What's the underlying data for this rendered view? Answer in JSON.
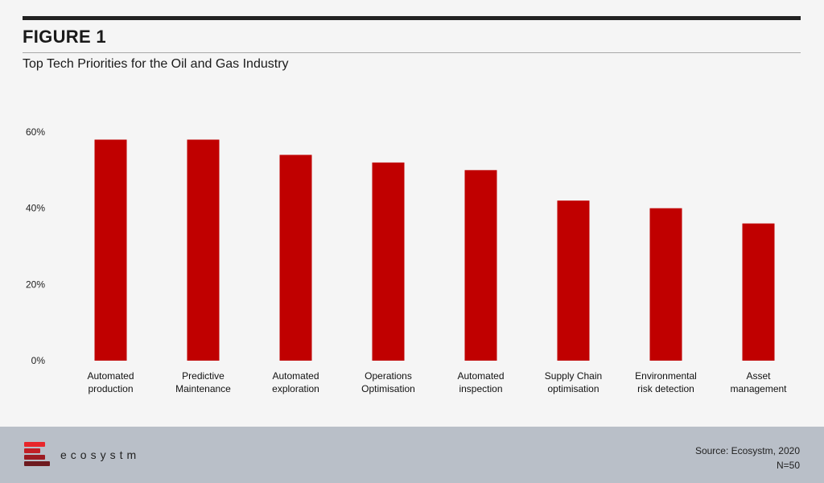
{
  "header": {
    "figure_label": "FIGURE 1",
    "subtitle": "Top Tech Priorities for the Oil and Gas Industry"
  },
  "colors": {
    "bar": "#c00000",
    "background": "#f5f5f5",
    "footer": "#b9bfc8",
    "logo_stripes": [
      "#e8262b",
      "#c21f26",
      "#9c1b22",
      "#6e1a1f"
    ]
  },
  "chart_data": {
    "type": "bar",
    "title": "Top Tech Priorities for the Oil and Gas Industry",
    "categories": [
      [
        "Automated",
        "production"
      ],
      [
        "Predictive",
        "Maintenance"
      ],
      [
        "Automated",
        "exploration"
      ],
      [
        "Operations",
        "Optimisation"
      ],
      [
        "Automated",
        "inspection"
      ],
      [
        "Supply Chain",
        "optimisation"
      ],
      [
        "Environmental",
        "risk detection"
      ],
      [
        "Asset",
        "management"
      ]
    ],
    "values": [
      58,
      58,
      54,
      52,
      50,
      42,
      40,
      36
    ],
    "ylim": [
      0,
      60
    ],
    "yticks": [
      0,
      20,
      40,
      60
    ],
    "ytick_labels": [
      "0%",
      "20%",
      "40%",
      "60%"
    ],
    "grid": false,
    "legend": false
  },
  "footer": {
    "logo_text": "ecosystm",
    "logo_icon": "ecosystm-logo-icon",
    "source": "Source: Ecosystm, 2020",
    "sample": "N=50"
  }
}
